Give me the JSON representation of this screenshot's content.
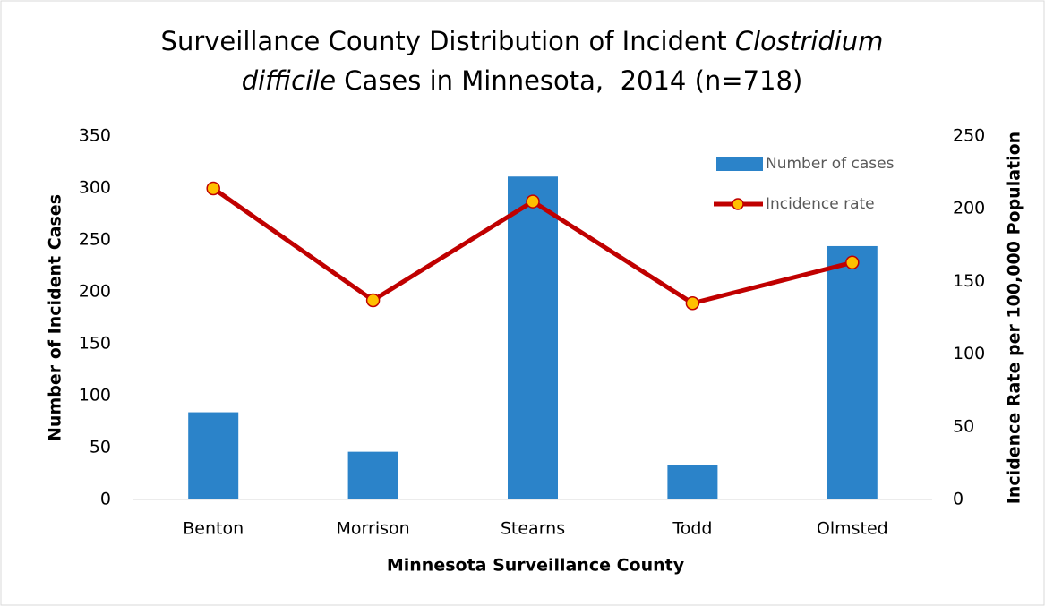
{
  "chart_data": {
    "type": "bar-line",
    "title_lines": [
      [
        {
          "text": "Surveillance County Distribution of Incident ",
          "italic": false
        },
        {
          "text": "Clostridium",
          "italic": true
        }
      ],
      [
        {
          "text": "difficile",
          "italic": true
        },
        {
          "text": " Cases in Minnesota,  2014 (n=718)",
          "italic": false
        }
      ]
    ],
    "x_label": "Minnesota Surveillance County",
    "y_label": "Number of Incident Cases",
    "y2_label": "Incidence Rate per 100,000 Population",
    "categories": [
      "Benton",
      "Morrison",
      "Stearns",
      "Todd",
      "Olmsted"
    ],
    "series": [
      {
        "name": "Number of cases",
        "type": "bar",
        "color": "#2b83c9",
        "values": [
          84,
          46,
          311,
          33,
          244
        ]
      },
      {
        "name": "Incidence rate",
        "type": "line",
        "axis": "y2",
        "color": "#c00000",
        "marker_color": "#ffc000",
        "values": [
          214,
          137,
          205,
          135,
          163
        ]
      }
    ],
    "ylim": [
      0,
      350
    ],
    "yticks": [
      0,
      50,
      100,
      150,
      200,
      250,
      300,
      350
    ],
    "y2lim": [
      0,
      250
    ],
    "y2ticks": [
      0,
      50,
      100,
      150,
      200,
      250
    ],
    "grid": false,
    "legend": "top-right"
  }
}
